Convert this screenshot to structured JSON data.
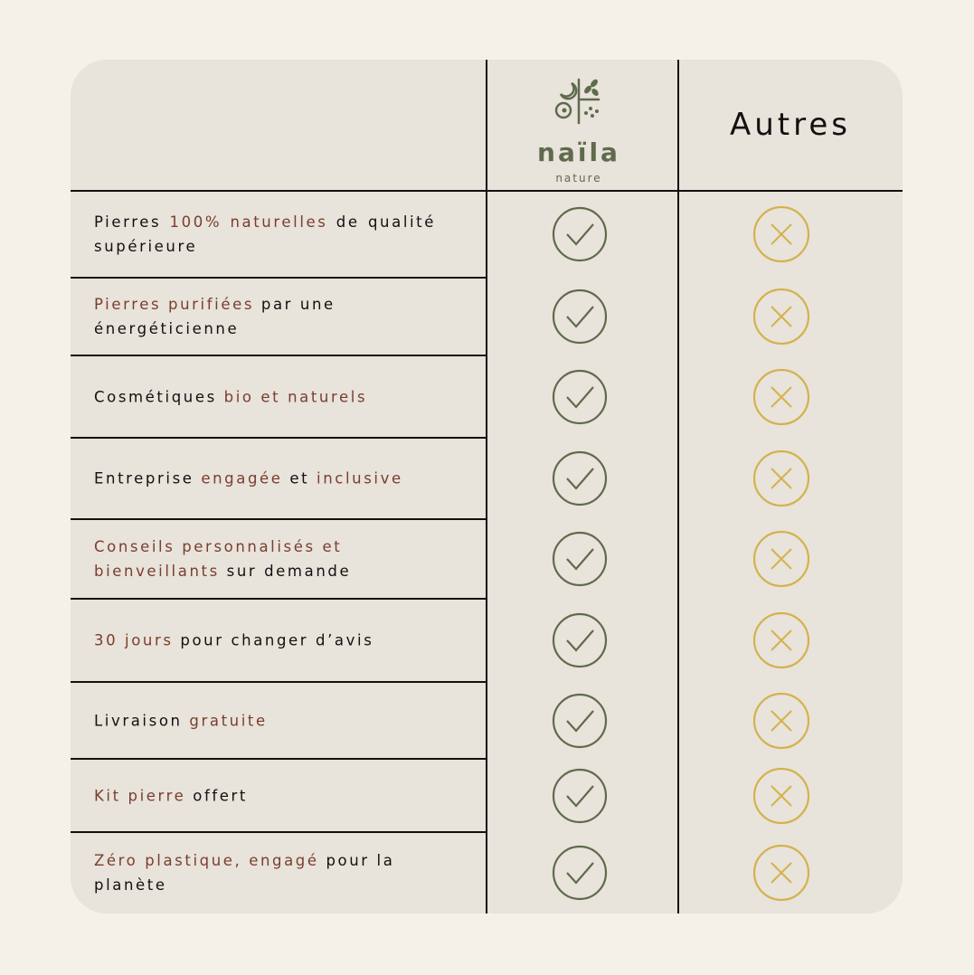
{
  "header": {
    "brand_logo": {
      "name": "naïla",
      "sub": "nature"
    },
    "others_label": "Autres"
  },
  "colors": {
    "background": "#f4f1e9",
    "panel": "#e8e3db",
    "check": "#5e6b4c",
    "cross": "#d4b24c",
    "accent_text": "#7a3e2e"
  },
  "rows": [
    {
      "parts": [
        {
          "t": "Pierres ",
          "a": false
        },
        {
          "t": "100% naturelles",
          "a": true
        },
        {
          "t": " de qualité supérieure",
          "a": false
        }
      ],
      "naila": "check-icon",
      "autres": "cross-icon"
    },
    {
      "parts": [
        {
          "t": "Pierres purifiées",
          "a": true
        },
        {
          "t": " par une énergéticienne",
          "a": false
        }
      ],
      "naila": "check-icon",
      "autres": "cross-icon"
    },
    {
      "parts": [
        {
          "t": "Cosmétiques ",
          "a": false
        },
        {
          "t": "bio et naturels",
          "a": true
        }
      ],
      "naila": "check-icon",
      "autres": "cross-icon"
    },
    {
      "parts": [
        {
          "t": "Entreprise ",
          "a": false
        },
        {
          "t": "engagée",
          "a": true
        },
        {
          "t": " et ",
          "a": false
        },
        {
          "t": "inclusive",
          "a": true
        }
      ],
      "naila": "check-icon",
      "autres": "cross-icon"
    },
    {
      "parts": [
        {
          "t": "Conseils personnalisés et bienveillants",
          "a": true
        },
        {
          "t": " sur demande",
          "a": false
        }
      ],
      "naila": "check-icon",
      "autres": "cross-icon"
    },
    {
      "parts": [
        {
          "t": "30 jours",
          "a": true
        },
        {
          "t": " pour changer d’avis",
          "a": false
        }
      ],
      "naila": "check-icon",
      "autres": "cross-icon"
    },
    {
      "parts": [
        {
          "t": "Livraison ",
          "a": false
        },
        {
          "t": "gratuite",
          "a": true
        }
      ],
      "naila": "check-icon",
      "autres": "cross-icon"
    },
    {
      "parts": [
        {
          "t": "Kit pierre",
          "a": true
        },
        {
          "t": " offert",
          "a": false
        }
      ],
      "naila": "check-icon",
      "autres": "cross-icon"
    },
    {
      "parts": [
        {
          "t": "Zéro plastique, engagé",
          "a": true
        },
        {
          "t": " pour la planète",
          "a": false
        }
      ],
      "naila": "check-icon",
      "autres": "cross-icon"
    }
  ]
}
